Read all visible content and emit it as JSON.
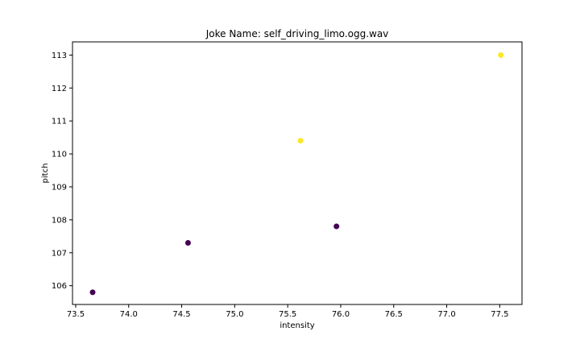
{
  "chart_data": {
    "type": "scatter",
    "title": "Joke Name: self_driving_limo.ogg.wav",
    "xlabel": "intensity",
    "ylabel": "pitch",
    "xlim": [
      73.47,
      77.71
    ],
    "ylim": [
      105.43,
      113.4
    ],
    "xticks": [
      73.5,
      74.0,
      74.5,
      75.0,
      75.5,
      76.0,
      76.5,
      77.0,
      77.5
    ],
    "xtick_labels": [
      "73.5",
      "74.0",
      "74.5",
      "75.0",
      "75.5",
      "76.0",
      "76.5",
      "77.0",
      "77.5"
    ],
    "yticks": [
      106,
      107,
      108,
      109,
      110,
      111,
      112,
      113
    ],
    "ytick_labels": [
      "106",
      "107",
      "108",
      "109",
      "110",
      "111",
      "112",
      "113"
    ],
    "grid": false,
    "colors": {
      "class_0": "#440154",
      "class_1": "#fde725"
    },
    "points": [
      {
        "x": 73.66,
        "y": 105.8,
        "class": 0
      },
      {
        "x": 74.56,
        "y": 107.3,
        "class": 0
      },
      {
        "x": 75.96,
        "y": 107.8,
        "class": 0
      },
      {
        "x": 75.62,
        "y": 110.4,
        "class": 1
      },
      {
        "x": 77.51,
        "y": 113.0,
        "class": 1
      }
    ]
  }
}
